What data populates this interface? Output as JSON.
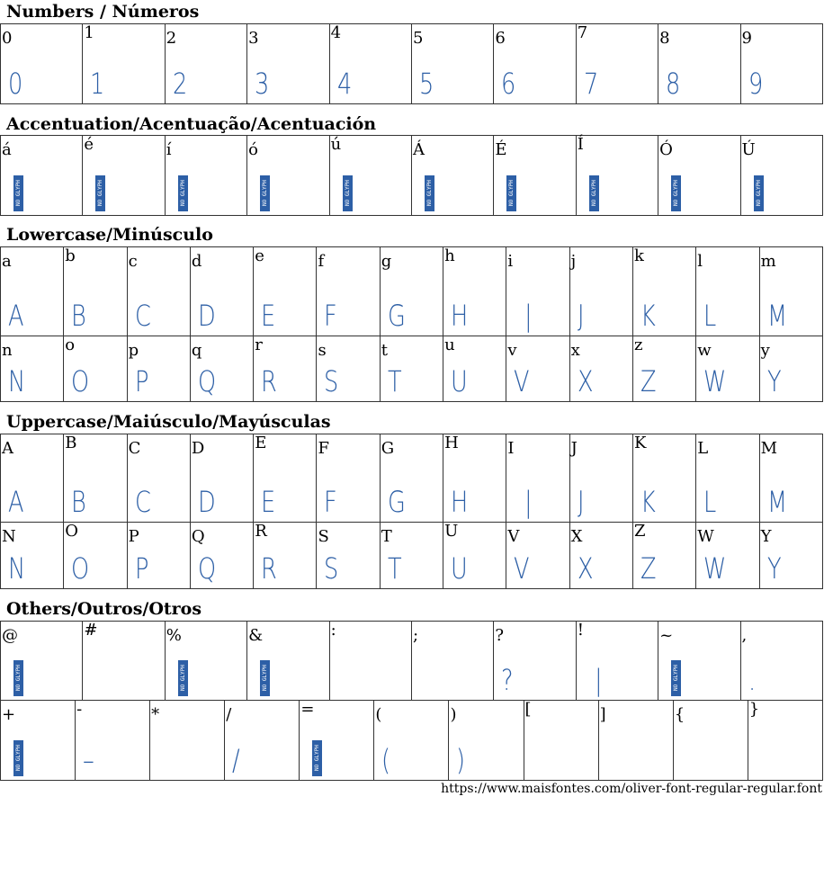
{
  "sections": [
    {
      "title": "Numbers / Números",
      "rows": [
        [
          {
            "c": "0",
            "g": "0"
          },
          {
            "c": "1",
            "g": "1"
          },
          {
            "c": "2",
            "g": "2"
          },
          {
            "c": "3",
            "g": "3"
          },
          {
            "c": "4",
            "g": "4"
          },
          {
            "c": "5",
            "g": "5"
          },
          {
            "c": "6",
            "g": "6"
          },
          {
            "c": "7",
            "g": "7"
          },
          {
            "c": "8",
            "g": "8"
          },
          {
            "c": "9",
            "g": "9"
          }
        ]
      ]
    },
    {
      "title": "Accentuation/Acentuação/Acentuación",
      "rows": [
        [
          {
            "c": "á",
            "g": null
          },
          {
            "c": "é",
            "g": null
          },
          {
            "c": "í",
            "g": null
          },
          {
            "c": "ó",
            "g": null
          },
          {
            "c": "ú",
            "g": null
          },
          {
            "c": "Á",
            "g": null
          },
          {
            "c": "É",
            "g": null
          },
          {
            "c": "Í",
            "g": null
          },
          {
            "c": "Ó",
            "g": null
          },
          {
            "c": "Ú",
            "g": null
          }
        ]
      ]
    },
    {
      "title": "Lowercase/Minúsculo",
      "rows": [
        [
          {
            "c": "a",
            "g": "A"
          },
          {
            "c": "b",
            "g": "B"
          },
          {
            "c": "c",
            "g": "C"
          },
          {
            "c": "d",
            "g": "D"
          },
          {
            "c": "e",
            "g": "E"
          },
          {
            "c": "f",
            "g": "F"
          },
          {
            "c": "g",
            "g": "G"
          },
          {
            "c": "h",
            "g": "H"
          },
          {
            "c": "i",
            "g": "|"
          },
          {
            "c": "j",
            "g": "J"
          },
          {
            "c": "k",
            "g": "K"
          },
          {
            "c": "l",
            "g": "L"
          },
          {
            "c": "m",
            "g": "M"
          }
        ],
        [
          {
            "c": "n",
            "g": "N"
          },
          {
            "c": "o",
            "g": "O"
          },
          {
            "c": "p",
            "g": "P"
          },
          {
            "c": "q",
            "g": "Q"
          },
          {
            "c": "r",
            "g": "R"
          },
          {
            "c": "s",
            "g": "S"
          },
          {
            "c": "t",
            "g": "T"
          },
          {
            "c": "u",
            "g": "U"
          },
          {
            "c": "v",
            "g": "V"
          },
          {
            "c": "x",
            "g": "X"
          },
          {
            "c": "z",
            "g": "Z"
          },
          {
            "c": "w",
            "g": "W"
          },
          {
            "c": "y",
            "g": "Y"
          }
        ]
      ]
    },
    {
      "title": "Uppercase/Maiúsculo/Mayúsculas",
      "rows": [
        [
          {
            "c": "A",
            "g": "A"
          },
          {
            "c": "B",
            "g": "B"
          },
          {
            "c": "C",
            "g": "C"
          },
          {
            "c": "D",
            "g": "D"
          },
          {
            "c": "E",
            "g": "E"
          },
          {
            "c": "F",
            "g": "F"
          },
          {
            "c": "G",
            "g": "G"
          },
          {
            "c": "H",
            "g": "H"
          },
          {
            "c": "I",
            "g": "|"
          },
          {
            "c": "J",
            "g": "J"
          },
          {
            "c": "K",
            "g": "K"
          },
          {
            "c": "L",
            "g": "L"
          },
          {
            "c": "M",
            "g": "M"
          }
        ],
        [
          {
            "c": "N",
            "g": "N"
          },
          {
            "c": "O",
            "g": "O"
          },
          {
            "c": "P",
            "g": "P"
          },
          {
            "c": "Q",
            "g": "Q"
          },
          {
            "c": "R",
            "g": "R"
          },
          {
            "c": "S",
            "g": "S"
          },
          {
            "c": "T",
            "g": "T"
          },
          {
            "c": "U",
            "g": "U"
          },
          {
            "c": "V",
            "g": "V"
          },
          {
            "c": "X",
            "g": "X"
          },
          {
            "c": "Z",
            "g": "Z"
          },
          {
            "c": "W",
            "g": "W"
          },
          {
            "c": "Y",
            "g": "Y"
          }
        ]
      ]
    },
    {
      "title": "Others/Outros/Otros",
      "rows": [
        [
          {
            "c": "@",
            "g": null
          },
          {
            "c": "#",
            "g": ""
          },
          {
            "c": "%",
            "g": null
          },
          {
            "c": "&",
            "g": null
          },
          {
            "c": ":",
            "g": ""
          },
          {
            "c": ";",
            "g": ""
          },
          {
            "c": "?",
            "g": "?"
          },
          {
            "c": "!",
            "g": "|"
          },
          {
            "c": "~",
            "g": null
          },
          {
            "c": ",",
            "g": "."
          }
        ],
        [
          {
            "c": "+",
            "g": null
          },
          {
            "c": "-",
            "g": "–"
          },
          {
            "c": "*",
            "g": ""
          },
          {
            "c": "/",
            "g": "/"
          },
          {
            "c": "=",
            "g": null
          },
          {
            "c": "(",
            "g": "("
          },
          {
            "c": ")",
            "g": ")"
          },
          {
            "c": "[",
            "g": ""
          },
          {
            "c": "]",
            "g": ""
          },
          {
            "c": "{",
            "g": ""
          },
          {
            "c": "}",
            "g": ""
          }
        ]
      ]
    }
  ],
  "no_glyph_label": "NO GLYPH",
  "footer_url": "https://www.maisfontes.com/oliver-font-regular-regular.font",
  "colors": {
    "glyph": "#2d5fa6"
  }
}
